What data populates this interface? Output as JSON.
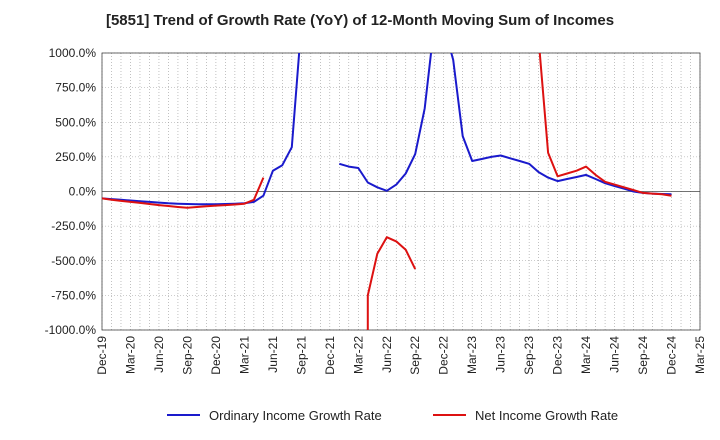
{
  "chart_data": {
    "type": "line",
    "title": "[5851]  Trend of Growth Rate (YoY) of 12-Month Moving Sum of Incomes",
    "xlabel": "",
    "ylabel": "",
    "ylim": [
      -1000,
      1000
    ],
    "y_ticks": [
      "1000.0%",
      "750.0%",
      "500.0%",
      "250.0%",
      "0.0%",
      "-250.0%",
      "-500.0%",
      "-750.0%",
      "-1000.0%"
    ],
    "y_tick_values": [
      1000,
      750,
      500,
      250,
      0,
      -250,
      -500,
      -750,
      -1000
    ],
    "x_ticks": [
      "Dec-19",
      "Mar-20",
      "Jun-20",
      "Sep-20",
      "Dec-20",
      "Mar-21",
      "Jun-21",
      "Sep-21",
      "Dec-21",
      "Mar-22",
      "Jun-22",
      "Sep-22",
      "Dec-22",
      "Mar-23",
      "Jun-23",
      "Sep-23",
      "Dec-23",
      "Mar-24",
      "Jun-24",
      "Sep-24",
      "Dec-24",
      "Mar-25"
    ],
    "x_start": "Dec-19",
    "x_end": "Mar-25",
    "grid": true,
    "legend_position": "bottom",
    "series": [
      {
        "name": "Ordinary Income Growth Rate",
        "color": "#1a1acc",
        "points": [
          [
            "Dec-19",
            -50
          ],
          [
            "Jan-20",
            -55
          ],
          [
            "Feb-20",
            -60
          ],
          [
            "Mar-20",
            -65
          ],
          [
            "Apr-20",
            -70
          ],
          [
            "May-20",
            -75
          ],
          [
            "Jun-20",
            -80
          ],
          [
            "Jul-20",
            -85
          ],
          [
            "Aug-20",
            -88
          ],
          [
            "Sep-20",
            -90
          ],
          [
            "Oct-20",
            -92
          ],
          [
            "Nov-20",
            -92
          ],
          [
            "Dec-20",
            -92
          ],
          [
            "Jan-21",
            -90
          ],
          [
            "Feb-21",
            -88
          ],
          [
            "Mar-21",
            -85
          ],
          [
            "Apr-21",
            -75
          ],
          [
            "May-21",
            -30
          ],
          [
            "Jun-21",
            150
          ],
          [
            "Jul-21",
            190
          ],
          [
            "Aug-21",
            320
          ],
          [
            "Sep-21",
            1200
          ],
          null,
          [
            "Jan-22",
            200
          ],
          [
            "Feb-22",
            180
          ],
          [
            "Mar-22",
            170
          ],
          [
            "Apr-22",
            65
          ],
          [
            "May-22",
            30
          ],
          [
            "Jun-22",
            5
          ],
          [
            "Jul-22",
            50
          ],
          [
            "Aug-22",
            130
          ],
          [
            "Sep-22",
            270
          ],
          [
            "Oct-22",
            600
          ],
          [
            "Nov-22",
            1200
          ],
          null,
          [
            "Dec-22",
            1200
          ],
          [
            "Jan-23",
            950
          ],
          [
            "Feb-23",
            400
          ],
          [
            "Mar-23",
            220
          ],
          [
            "Apr-23",
            235
          ],
          [
            "May-23",
            250
          ],
          [
            "Jun-23",
            260
          ],
          [
            "Jul-23",
            240
          ],
          [
            "Aug-23",
            220
          ],
          [
            "Sep-23",
            200
          ],
          [
            "Oct-23",
            140
          ],
          [
            "Nov-23",
            100
          ],
          [
            "Dec-23",
            75
          ],
          [
            "Jan-24",
            90
          ],
          [
            "Feb-24",
            105
          ],
          [
            "Mar-24",
            120
          ],
          [
            "Apr-24",
            90
          ],
          [
            "May-24",
            60
          ],
          [
            "Jun-24",
            40
          ],
          [
            "Jul-24",
            20
          ],
          [
            "Aug-24",
            0
          ],
          [
            "Sep-24",
            -10
          ],
          [
            "Oct-24",
            -15
          ],
          [
            "Nov-24",
            -18
          ],
          [
            "Dec-24",
            -20
          ]
        ]
      },
      {
        "name": "Net Income Growth Rate",
        "color": "#dd1111",
        "points": [
          [
            "Dec-19",
            -50
          ],
          [
            "Jan-20",
            -60
          ],
          [
            "Feb-20",
            -68
          ],
          [
            "Mar-20",
            -75
          ],
          [
            "Apr-20",
            -82
          ],
          [
            "May-20",
            -90
          ],
          [
            "Jun-20",
            -98
          ],
          [
            "Jul-20",
            -105
          ],
          [
            "Aug-20",
            -112
          ],
          [
            "Sep-20",
            -118
          ],
          [
            "Oct-20",
            -112
          ],
          [
            "Nov-20",
            -106
          ],
          [
            "Dec-20",
            -102
          ],
          [
            "Jan-21",
            -98
          ],
          [
            "Feb-21",
            -94
          ],
          [
            "Mar-21",
            -88
          ],
          [
            "Apr-21",
            -60
          ],
          [
            "May-21",
            100
          ],
          null,
          [
            "Apr-22",
            -1100
          ],
          [
            "Apr-22",
            -750
          ],
          [
            "May-22",
            -450
          ],
          [
            "Jun-22",
            -330
          ],
          [
            "Jul-22",
            -360
          ],
          [
            "Aug-22",
            -420
          ],
          [
            "Sep-22",
            -560
          ],
          null,
          [
            "Oct-23",
            1100
          ],
          [
            "Nov-23",
            280
          ],
          [
            "Dec-23",
            110
          ],
          [
            "Jan-24",
            130
          ],
          [
            "Feb-24",
            150
          ],
          [
            "Mar-24",
            180
          ],
          [
            "Apr-24",
            120
          ],
          [
            "May-24",
            70
          ],
          [
            "Jun-24",
            50
          ],
          [
            "Jul-24",
            30
          ],
          [
            "Aug-24",
            10
          ],
          [
            "Sep-24",
            -10
          ],
          [
            "Oct-24",
            -15
          ],
          [
            "Nov-24",
            -20
          ],
          [
            "Dec-24",
            -30
          ]
        ]
      }
    ]
  }
}
